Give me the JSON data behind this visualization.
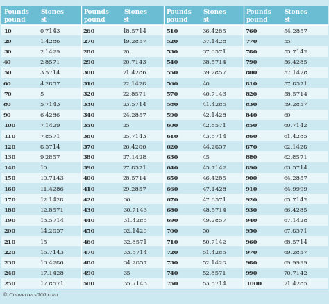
{
  "col1": [
    10,
    20,
    30,
    40,
    50,
    60,
    70,
    80,
    90,
    100,
    110,
    120,
    130,
    140,
    150,
    160,
    170,
    180,
    190,
    200,
    210,
    220,
    230,
    240,
    250
  ],
  "col2": [
    "0.7143",
    "1.4286",
    "2.1429",
    "2.8571",
    "3.5714",
    "4.2857",
    "5",
    "5.7143",
    "6.4286",
    "7.1429",
    "7.8571",
    "8.5714",
    "9.2857",
    "10",
    "10.7143",
    "11.4286",
    "12.1428",
    "12.8571",
    "13.5714",
    "14.2857",
    "15",
    "15.7143",
    "16.4286",
    "17.1428",
    "17.8571"
  ],
  "col3": [
    260,
    270,
    280,
    290,
    300,
    310,
    320,
    330,
    340,
    350,
    360,
    370,
    380,
    390,
    400,
    410,
    420,
    430,
    440,
    450,
    460,
    470,
    480,
    490,
    500
  ],
  "col4": [
    "18.5714",
    "19.2857",
    "20",
    "20.7143",
    "21.4286",
    "22.1428",
    "22.8571",
    "23.5714",
    "24.2857",
    "25",
    "25.7143",
    "26.4286",
    "27.1428",
    "27.8571",
    "28.5714",
    "29.2857",
    "30",
    "30.7143",
    "31.4285",
    "32.1428",
    "32.8571",
    "33.5714",
    "34.2857",
    "35",
    "35.7143"
  ],
  "col5": [
    510,
    520,
    530,
    540,
    550,
    560,
    570,
    580,
    590,
    600,
    610,
    620,
    630,
    640,
    650,
    660,
    670,
    680,
    690,
    700,
    710,
    720,
    730,
    740,
    750
  ],
  "col6": [
    "36.4285",
    "37.1428",
    "37.8571",
    "38.5714",
    "39.2857",
    "40",
    "40.7143",
    "41.4285",
    "42.1428",
    "42.8571",
    "43.5714",
    "44.2857",
    "45",
    "45.7142",
    "46.4285",
    "47.1428",
    "47.8571",
    "48.5714",
    "49.2857",
    "50",
    "50.7142",
    "51.4285",
    "52.1428",
    "52.8571",
    "53.5714"
  ],
  "col7": [
    760,
    770,
    780,
    790,
    800,
    810,
    820,
    830,
    840,
    850,
    860,
    870,
    880,
    890,
    900,
    910,
    920,
    930,
    940,
    950,
    960,
    970,
    980,
    990,
    1000
  ],
  "col8": [
    "54.2857",
    "55",
    "55.7142",
    "56.4285",
    "57.1428",
    "57.8571",
    "58.5714",
    "59.2857",
    "60",
    "60.7142",
    "61.4285",
    "62.1428",
    "62.8571",
    "63.5714",
    "64.2857",
    "64.9999",
    "65.7142",
    "66.4285",
    "67.1428",
    "67.8571",
    "68.5714",
    "69.2857",
    "69.9999",
    "70.7142",
    "71.4285"
  ],
  "header_bg": "#6bbdd4",
  "row_bg_odd": "#cce8f0",
  "row_bg_even": "#e8f5f9",
  "header_text_color": "#ffffff",
  "body_text_color": "#2c2c2c",
  "separator_color": "#7fc8d8",
  "footer_text": "© Converters360.com",
  "font_size": 6.0,
  "header_font_size": 6.5,
  "fig_bg": "#cce8f0"
}
